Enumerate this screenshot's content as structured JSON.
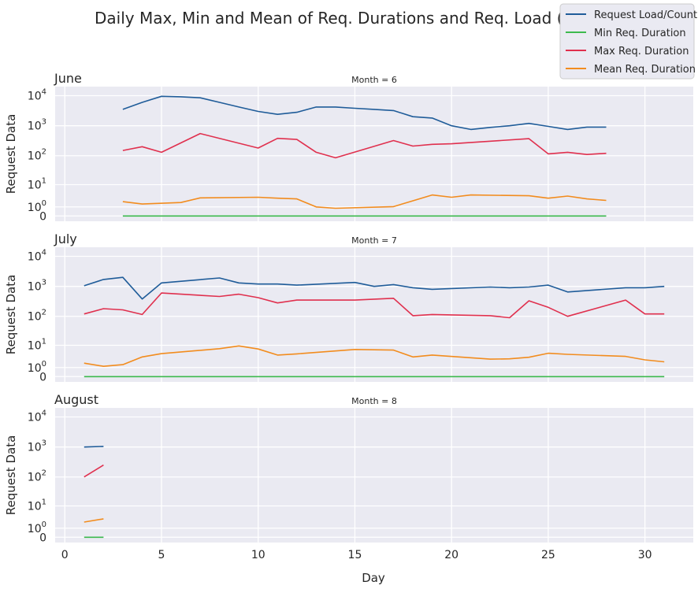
{
  "chart_data": {
    "type": "line",
    "title": "Daily Max, Min and Mean of Req. Durations and Req. Load (3 mo.)",
    "xlabel": "Day",
    "ylabel": "Request Data",
    "yscale": "symlog",
    "xlim": [
      -0.5,
      32.5
    ],
    "ylim": [
      -0.5,
      20000
    ],
    "x_ticks": [
      0,
      5,
      10,
      15,
      20,
      25,
      30
    ],
    "y_ticks": [
      {
        "value": 0,
        "base": "0",
        "exp": ""
      },
      {
        "value": 1,
        "base": "10",
        "exp": "0"
      },
      {
        "value": 10,
        "base": "10",
        "exp": "1"
      },
      {
        "value": 100,
        "base": "10",
        "exp": "2"
      },
      {
        "value": 1000,
        "base": "10",
        "exp": "3"
      },
      {
        "value": 10000,
        "base": "10",
        "exp": "4"
      }
    ],
    "grid": true,
    "legend_position": "top-right",
    "series_styles": [
      {
        "name": "Request Load/Count",
        "color": "#1f5c99"
      },
      {
        "name": "Min Req. Duration",
        "color": "#3dba4e"
      },
      {
        "name": "Max Req. Duration",
        "color": "#e0304e"
      },
      {
        "name": "Mean Req. Duration",
        "color": "#f28c1e"
      }
    ],
    "panels": [
      {
        "title": "June",
        "subtitle": "Month = 6",
        "series": [
          {
            "name": "Request Load/Count",
            "points": [
              [
                3,
                3500
              ],
              [
                4,
                6000
              ],
              [
                5,
                9500
              ],
              [
                6,
                9200
              ],
              [
                7,
                8500
              ],
              [
                8,
                6000
              ],
              [
                9,
                4200
              ],
              [
                10,
                3000
              ],
              [
                11,
                2400
              ],
              [
                12,
                2800
              ],
              [
                13,
                4200
              ],
              [
                14,
                4200
              ],
              [
                15,
                3800
              ],
              [
                16,
                3500
              ],
              [
                17,
                3200
              ],
              [
                18,
                2000
              ],
              [
                19,
                1800
              ],
              [
                20,
                1000
              ],
              [
                21,
                750
              ],
              [
                22,
                880
              ],
              [
                23,
                1000
              ],
              [
                24,
                1200
              ],
              [
                25,
                950
              ],
              [
                26,
                750
              ],
              [
                27,
                900
              ],
              [
                28,
                900
              ]
            ]
          },
          {
            "name": "Min Req. Duration",
            "points": [
              [
                3,
                0
              ],
              [
                4,
                0
              ],
              [
                5,
                0
              ],
              [
                6,
                0
              ],
              [
                7,
                0
              ],
              [
                8,
                0
              ],
              [
                9,
                0
              ],
              [
                10,
                0
              ],
              [
                11,
                0
              ],
              [
                12,
                0
              ],
              [
                13,
                0
              ],
              [
                14,
                0
              ],
              [
                15,
                0
              ],
              [
                16,
                0
              ],
              [
                17,
                0
              ],
              [
                18,
                0
              ],
              [
                19,
                0
              ],
              [
                20,
                0
              ],
              [
                21,
                0
              ],
              [
                22,
                0
              ],
              [
                23,
                0
              ],
              [
                24,
                0
              ],
              [
                25,
                0
              ],
              [
                26,
                0
              ],
              [
                27,
                0
              ],
              [
                28,
                0
              ]
            ]
          },
          {
            "name": "Max Req. Duration",
            "points": [
              [
                3,
                150
              ],
              [
                4,
                200
              ],
              [
                5,
                130
              ],
              [
                7,
                550
              ],
              [
                10,
                180
              ],
              [
                11,
                380
              ],
              [
                12,
                350
              ],
              [
                13,
                130
              ],
              [
                14,
                85
              ],
              [
                17,
                320
              ],
              [
                18,
                210
              ],
              [
                19,
                240
              ],
              [
                20,
                250
              ],
              [
                24,
                370
              ],
              [
                25,
                115
              ],
              [
                26,
                130
              ],
              [
                27,
                110
              ],
              [
                28,
                120
              ]
            ]
          },
          {
            "name": "Mean Req. Duration",
            "points": [
              [
                3,
                2.0
              ],
              [
                4,
                1.5
              ],
              [
                6,
                1.8
              ],
              [
                7,
                3.0
              ],
              [
                10,
                3.2
              ],
              [
                11,
                2.9
              ],
              [
                12,
                2.7
              ],
              [
                13,
                1.0
              ],
              [
                14,
                0.8
              ],
              [
                17,
                1.05
              ],
              [
                18,
                2.2
              ],
              [
                19,
                4.0
              ],
              [
                20,
                3.2
              ],
              [
                21,
                4.0
              ],
              [
                24,
                3.7
              ],
              [
                25,
                2.9
              ],
              [
                26,
                3.6
              ],
              [
                27,
                2.7
              ],
              [
                28,
                2.3
              ]
            ]
          }
        ]
      },
      {
        "title": "July",
        "subtitle": "Month = 7",
        "series": [
          {
            "name": "Request Load/Count",
            "points": [
              [
                1,
                1050
              ],
              [
                2,
                1700
              ],
              [
                3,
                2000
              ],
              [
                4,
                380
              ],
              [
                5,
                1300
              ],
              [
                8,
                1900
              ],
              [
                9,
                1300
              ],
              [
                10,
                1200
              ],
              [
                11,
                1200
              ],
              [
                12,
                1100
              ],
              [
                15,
                1350
              ],
              [
                16,
                1000
              ],
              [
                17,
                1150
              ],
              [
                18,
                900
              ],
              [
                19,
                800
              ],
              [
                22,
                950
              ],
              [
                23,
                900
              ],
              [
                24,
                950
              ],
              [
                25,
                1100
              ],
              [
                26,
                650
              ],
              [
                29,
                900
              ],
              [
                30,
                900
              ],
              [
                31,
                1000
              ]
            ]
          },
          {
            "name": "Min Req. Duration",
            "points": [
              [
                1,
                0
              ],
              [
                5,
                0
              ],
              [
                10,
                0
              ],
              [
                15,
                0
              ],
              [
                20,
                0
              ],
              [
                25,
                0
              ],
              [
                31,
                0
              ]
            ]
          },
          {
            "name": "Max Req. Duration",
            "points": [
              [
                1,
                120
              ],
              [
                2,
                180
              ],
              [
                3,
                165
              ],
              [
                4,
                115
              ],
              [
                5,
                600
              ],
              [
                8,
                460
              ],
              [
                9,
                550
              ],
              [
                10,
                420
              ],
              [
                11,
                280
              ],
              [
                12,
                350
              ],
              [
                15,
                350
              ],
              [
                17,
                400
              ],
              [
                18,
                105
              ],
              [
                19,
                115
              ],
              [
                22,
                105
              ],
              [
                23,
                90
              ],
              [
                24,
                330
              ],
              [
                25,
                200
              ],
              [
                26,
                100
              ],
              [
                29,
                350
              ],
              [
                30,
                120
              ],
              [
                31,
                120
              ]
            ]
          },
          {
            "name": "Mean Req. Duration",
            "points": [
              [
                1,
                1.8
              ],
              [
                2,
                1.2
              ],
              [
                3,
                1.5
              ],
              [
                4,
                3.5
              ],
              [
                5,
                4.8
              ],
              [
                8,
                7.5
              ],
              [
                9,
                9.5
              ],
              [
                10,
                7.3
              ],
              [
                11,
                4.2
              ],
              [
                12,
                4.7
              ],
              [
                15,
                7.0
              ],
              [
                17,
                6.6
              ],
              [
                18,
                3.5
              ],
              [
                19,
                4.2
              ],
              [
                22,
                2.8
              ],
              [
                23,
                2.9
              ],
              [
                24,
                3.4
              ],
              [
                25,
                5.0
              ],
              [
                26,
                4.5
              ],
              [
                29,
                3.7
              ],
              [
                30,
                2.6
              ],
              [
                31,
                2.1
              ]
            ]
          }
        ]
      },
      {
        "title": "August",
        "subtitle": "Month = 8",
        "series": [
          {
            "name": "Request Load/Count",
            "points": [
              [
                1,
                1000
              ],
              [
                2,
                1050
              ]
            ]
          },
          {
            "name": "Min Req. Duration",
            "points": [
              [
                1,
                0
              ],
              [
                2,
                0
              ]
            ]
          },
          {
            "name": "Max Req. Duration",
            "points": [
              [
                1,
                100
              ],
              [
                2,
                250
              ]
            ]
          },
          {
            "name": "Mean Req. Duration",
            "points": [
              [
                1,
                2.2
              ],
              [
                2,
                3.1
              ]
            ]
          }
        ]
      }
    ]
  }
}
